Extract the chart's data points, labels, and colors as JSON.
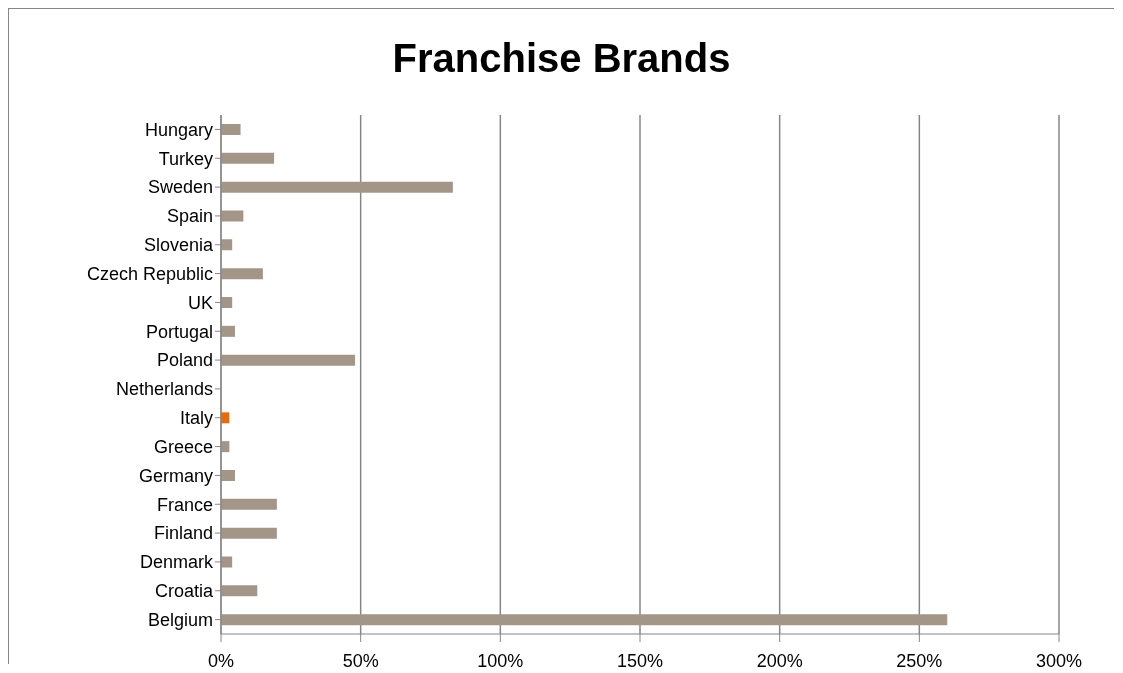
{
  "chart_data": {
    "type": "bar",
    "orientation": "horizontal",
    "title": "Franchise Brands",
    "categories": [
      "Hungary",
      "Turkey",
      "Sweden",
      "Spain",
      "Slovenia",
      "Czech Republic",
      "UK",
      "Portugal",
      "Poland",
      "Netherlands",
      "Italy",
      "Greece",
      "Germany",
      "France",
      "Finland",
      "Denmark",
      "Croatia",
      "Belgium"
    ],
    "values": [
      7,
      19,
      83,
      8,
      4,
      15,
      4,
      5,
      48,
      0,
      3,
      3,
      5,
      20,
      20,
      4,
      13,
      260
    ],
    "colors": [
      "#a39588",
      "#a39588",
      "#a39588",
      "#a39588",
      "#a39588",
      "#a39588",
      "#a39588",
      "#a39588",
      "#a39588",
      "#a39588",
      "#e46c0a",
      "#a39588",
      "#a39588",
      "#a39588",
      "#a39588",
      "#a39588",
      "#a39588",
      "#a39588"
    ],
    "xlim": [
      0,
      300
    ],
    "xticks": [
      {
        "value": 0,
        "label": "0%"
      },
      {
        "value": 50,
        "label": "50%"
      },
      {
        "value": 100,
        "label": "100%"
      },
      {
        "value": 150,
        "label": "150%"
      },
      {
        "value": 200,
        "label": "200%"
      },
      {
        "value": 250,
        "label": "250%"
      },
      {
        "value": 300,
        "label": "300%"
      }
    ],
    "grid": "x"
  }
}
